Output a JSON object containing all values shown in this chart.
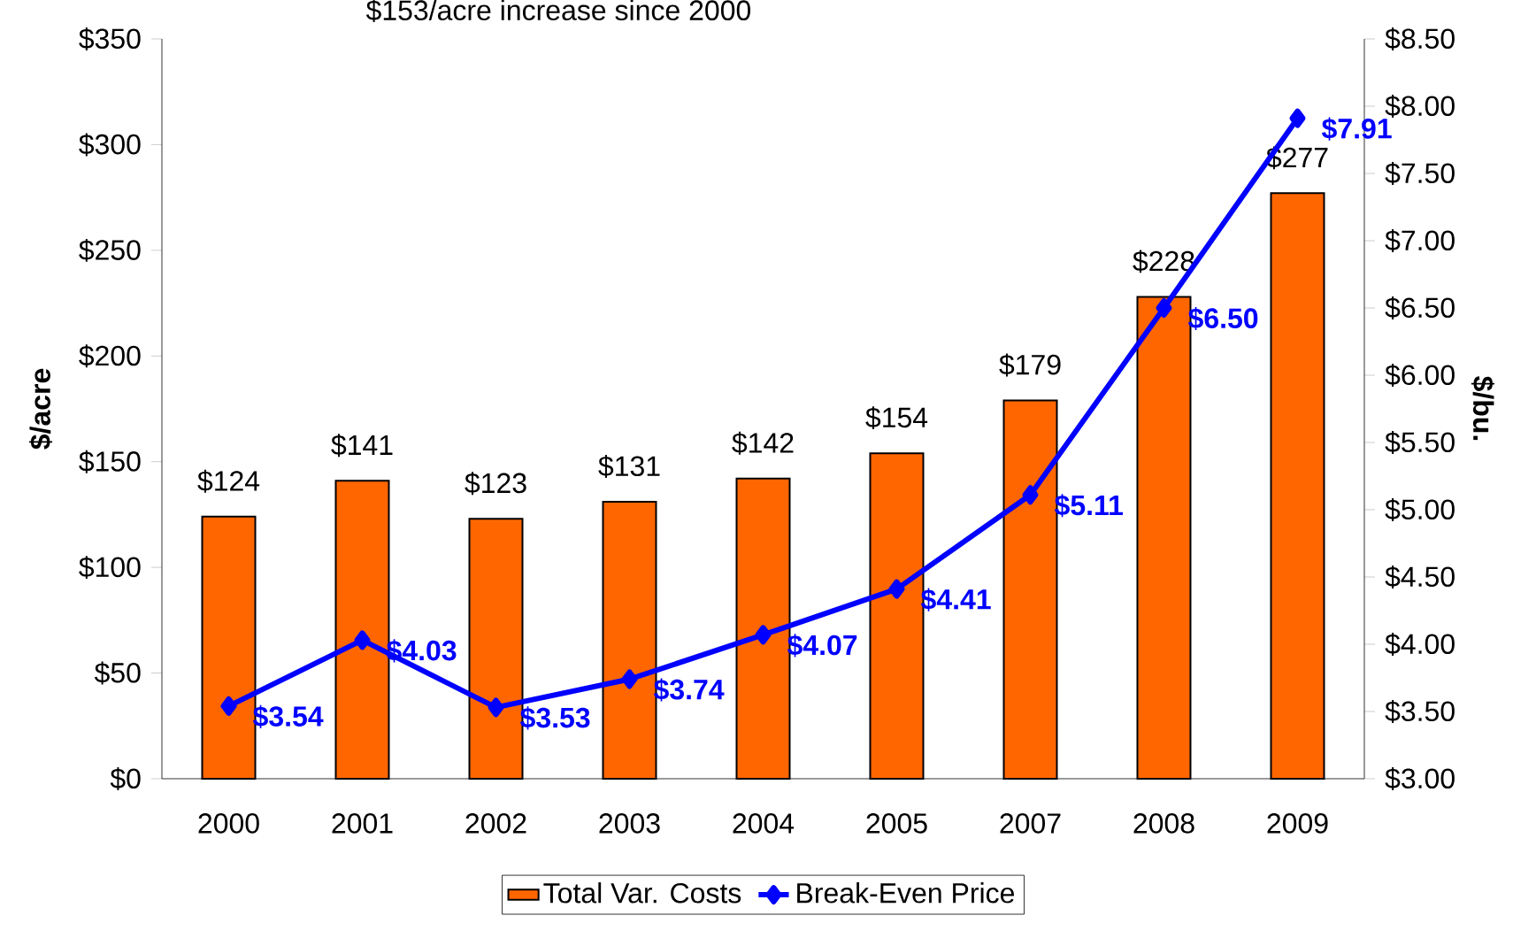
{
  "chart_data": {
    "type": "bar",
    "title": "$153/acre increase since 2000",
    "categories": [
      "2000",
      "2001",
      "2002",
      "2003",
      "2004",
      "2005",
      "2007",
      "2008",
      "2009"
    ],
    "series": [
      {
        "name": "Total Var. Costs",
        "color": "#ff6600",
        "values": [
          124,
          141,
          123,
          131,
          142,
          154,
          179,
          228,
          277
        ],
        "value_labels": [
          "$124",
          "$141",
          "$123",
          "$131",
          "$142",
          "$154",
          "$179",
          "$228",
          "$277"
        ]
      },
      {
        "name": "Break-Even Price",
        "type": "line",
        "axis": "y2",
        "color": "#0000ff",
        "values": [
          3.54,
          4.03,
          3.53,
          3.74,
          4.07,
          4.41,
          5.11,
          6.5,
          7.91
        ],
        "value_labels": [
          "$3.54",
          "$4.03",
          "$3.53",
          "$3.74",
          "$4.07",
          "$4.41",
          "$5.11",
          "$6.50",
          "$7.91"
        ]
      }
    ],
    "ylabel": "$/acre",
    "y2label": "$/bu.",
    "ylim": [
      0,
      350
    ],
    "yticks": [
      {
        "value": 0,
        "label": "$0"
      },
      {
        "value": 50,
        "label": "$50"
      },
      {
        "value": 100,
        "label": "$100"
      },
      {
        "value": 150,
        "label": "$150"
      },
      {
        "value": 200,
        "label": "$200"
      },
      {
        "value": 250,
        "label": "$250"
      },
      {
        "value": 300,
        "label": "$300"
      },
      {
        "value": 350,
        "label": "$350"
      }
    ],
    "y2lim": [
      3,
      8.5
    ],
    "y2ticks": [
      {
        "value": 3,
        "label": "$3.00"
      },
      {
        "value": 3.5,
        "label": "$3.50"
      },
      {
        "value": 4,
        "label": "$4.00"
      },
      {
        "value": 4.5,
        "label": "$4.50"
      },
      {
        "value": 5,
        "label": "$5.00"
      },
      {
        "value": 5.5,
        "label": "$5.50"
      },
      {
        "value": 6,
        "label": "$6.00"
      },
      {
        "value": 6.5,
        "label": "$6.50"
      },
      {
        "value": 7,
        "label": "$7.00"
      },
      {
        "value": 7.5,
        "label": "$7.50"
      },
      {
        "value": 8,
        "label": "$8.00"
      },
      {
        "value": 8.5,
        "label": "$8.50"
      }
    ],
    "grid": false,
    "legend": "bottom",
    "marker": "diamond",
    "line_style": "solid"
  }
}
